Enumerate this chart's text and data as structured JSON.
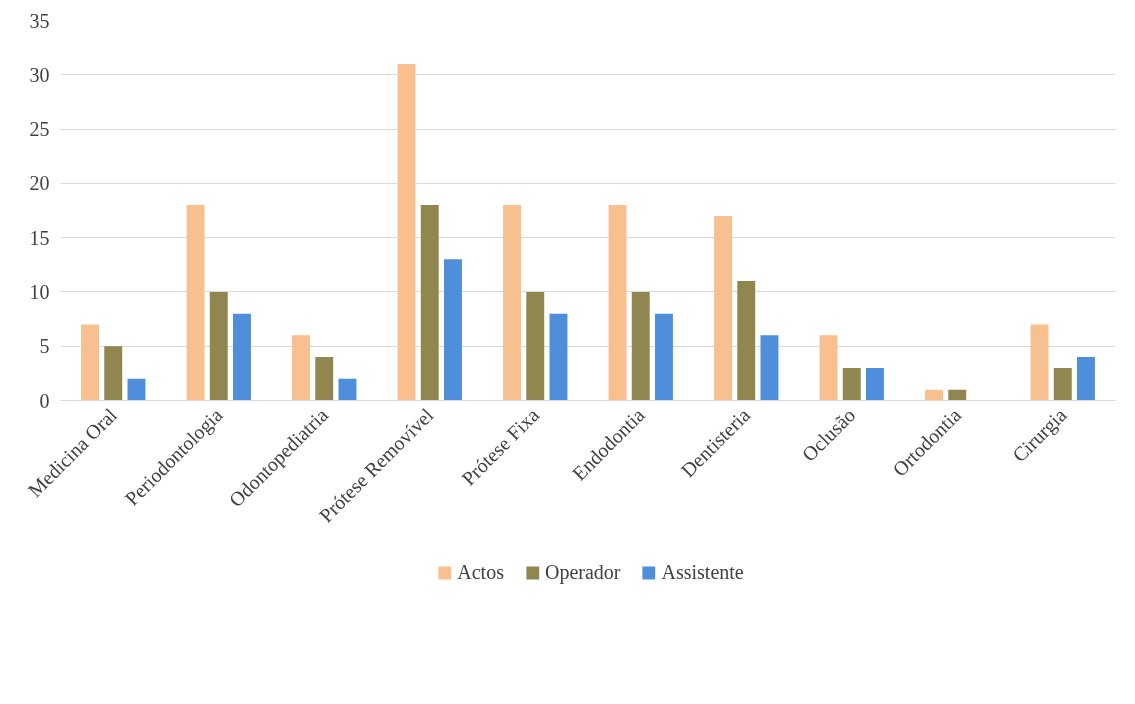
{
  "chart_data": {
    "type": "bar",
    "categories": [
      "Medicina Oral",
      "Periodontologia",
      "Odontopediatria",
      "Prótese Removível",
      "Prótese Fixa",
      "Endodontia",
      "Dentisteria",
      "Oclusão",
      "Ortodontia",
      "Cirurgia"
    ],
    "series": [
      {
        "name": "Actos",
        "color": "#f9c08f",
        "values": [
          7,
          18,
          6,
          31,
          18,
          18,
          17,
          6,
          1,
          7
        ]
      },
      {
        "name": "Operador",
        "color": "#8f8650",
        "values": [
          5,
          10,
          4,
          18,
          10,
          10,
          11,
          3,
          1,
          3
        ]
      },
      {
        "name": "Assistente",
        "color": "#4f8edb",
        "values": [
          2,
          8,
          2,
          13,
          8,
          8,
          6,
          3,
          0,
          4
        ]
      }
    ],
    "ylim": [
      0,
      35
    ],
    "yticks": [
      0,
      5,
      10,
      15,
      20,
      25,
      30,
      35
    ],
    "grid": "y",
    "legend": "bottom"
  }
}
